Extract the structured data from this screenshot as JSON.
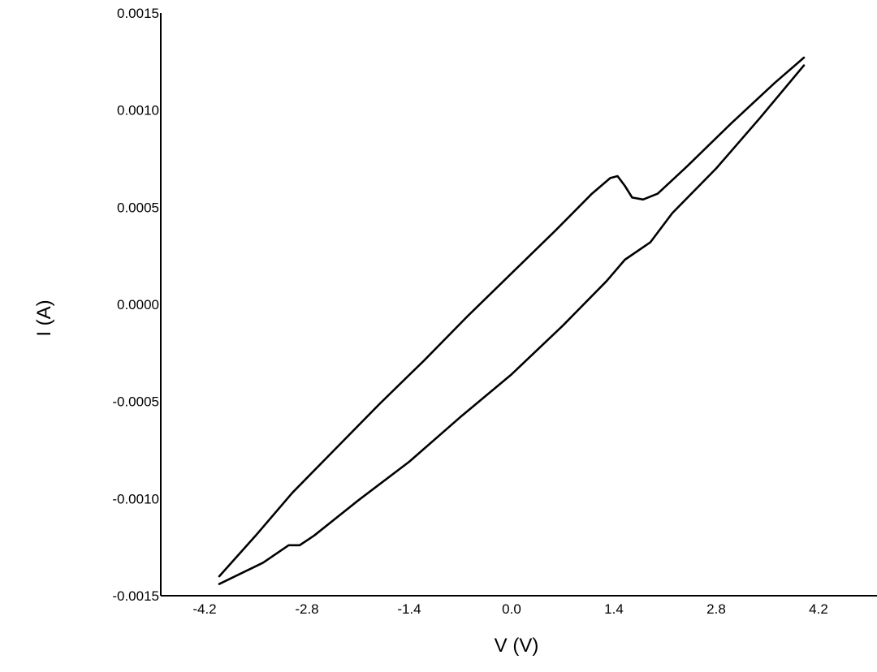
{
  "chart_data": {
    "type": "line",
    "title": "",
    "xlabel": "V (V)",
    "ylabel": "I (A)",
    "xlim": [
      -4.8,
      5.0
    ],
    "ylim": [
      -0.0015,
      0.0015
    ],
    "grid": false,
    "legend": "none",
    "line_color": "#000000",
    "x_ticks": [
      -4.2,
      -2.8,
      -1.4,
      0.0,
      1.4,
      2.8,
      4.2
    ],
    "x_tick_labels": [
      "-4.2",
      "-2.8",
      "-1.4",
      "0.0",
      "1.4",
      "2.8",
      "4.2"
    ],
    "y_ticks": [
      0.0015,
      0.001,
      0.0005,
      0.0,
      -0.0005,
      -0.001,
      -0.0015
    ],
    "y_tick_labels": [
      "0.0015",
      "0.0010",
      "0.0005",
      "0.0000",
      "-0.0005",
      "-0.0010",
      "-0.0015"
    ],
    "series": [
      {
        "x": [
          4.0,
          3.4,
          2.8,
          2.2,
          1.9,
          1.55,
          1.3,
          0.7,
          0.0,
          -0.7,
          -1.4,
          -2.1,
          -2.7,
          -2.9,
          -3.05,
          -3.4,
          -4.0
        ],
        "y": [
          0.00123,
          0.00096,
          0.0007,
          0.00047,
          0.00032,
          0.00023,
          0.00012,
          -0.00011,
          -0.00036,
          -0.00058,
          -0.00081,
          -0.00101,
          -0.00119,
          -0.00124,
          -0.00124,
          -0.00133,
          -0.00144
        ]
      },
      {
        "x": [
          -4.0,
          -3.5,
          -3.0,
          -2.4,
          -1.8,
          -1.2,
          -0.6,
          0.0,
          0.6,
          1.1,
          1.35,
          1.45,
          1.55,
          1.65,
          1.8,
          2.0,
          2.4,
          3.0,
          3.6,
          4.0
        ],
        "y": [
          -0.0014,
          -0.00119,
          -0.00097,
          -0.00074,
          -0.00051,
          -0.00029,
          -6e-05,
          0.00016,
          0.00038,
          0.00057,
          0.00065,
          0.00066,
          0.00061,
          0.00055,
          0.00054,
          0.00057,
          0.00071,
          0.00093,
          0.00114,
          0.00127
        ]
      }
    ]
  }
}
